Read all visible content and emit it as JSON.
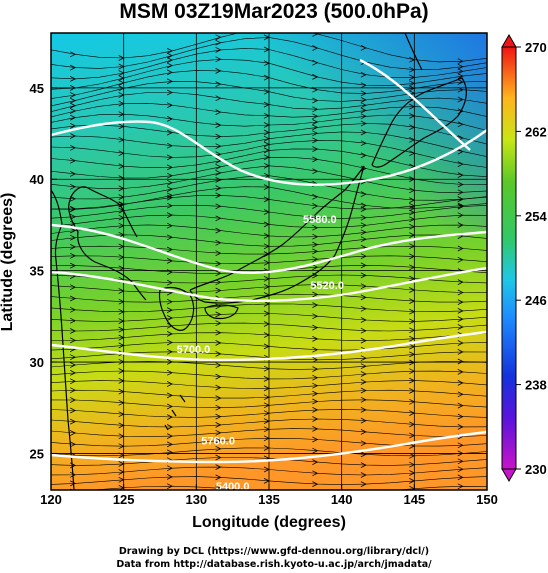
{
  "title": "MSM 03Z19Mar2023 (500.0hPa)",
  "x_axis": {
    "label": "Longitude (degrees)",
    "range": [
      120,
      150
    ],
    "ticks": [
      "120",
      "125",
      "130",
      "135",
      "140",
      "145",
      "150"
    ]
  },
  "y_axis": {
    "label": "Latitude  (degrees)",
    "range": [
      23,
      48
    ],
    "ticks": [
      "25",
      "30",
      "35",
      "40",
      "45"
    ]
  },
  "colorbar": {
    "min": 230,
    "max": 270,
    "ticks": [
      "230",
      "238",
      "246",
      "254",
      "262",
      "270"
    ]
  },
  "contours": [
    {
      "label": "5400.0",
      "lon": 132.5,
      "lat": 23.0
    },
    {
      "label": "5700.0",
      "lon": 129.8,
      "lat": 30.5
    },
    {
      "label": "5520.0",
      "lon": 139.0,
      "lat": 34.0
    },
    {
      "label": "5580.0",
      "lon": 138.5,
      "lat": 37.6
    },
    {
      "label": "5760.0",
      "lon": 131.5,
      "lat": 25.5
    }
  ],
  "footer": {
    "line1": "Drawing by DCL (https://www.gfd-dennou.org/library/dcl/)",
    "line2": "Data from http://database.rish.kyoto-u.ac.jp/arch/jmadata/"
  },
  "colors": {
    "cold": "#1aa8ff",
    "mid": "#46c846",
    "warm": "#ffa028",
    "contour": "#ffffff"
  }
}
